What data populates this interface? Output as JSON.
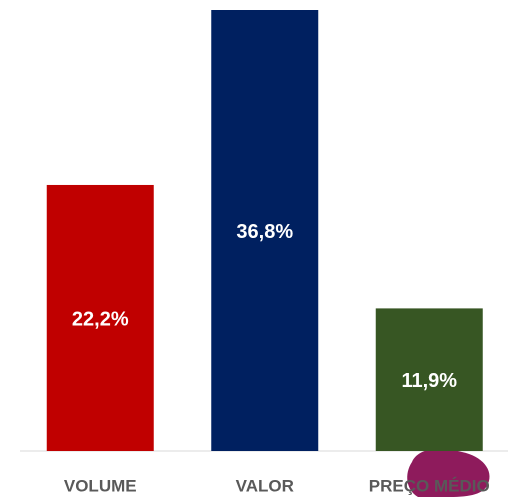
{
  "chart_data": {
    "type": "bar",
    "categories": [
      "VOLUME",
      "VALOR",
      "PREÇO MÉDIO"
    ],
    "values": [
      22.2,
      36.8,
      11.9
    ],
    "value_labels": [
      "22,2%",
      "36,8%",
      "11,9%"
    ],
    "colors": [
      "#c00000",
      "#002060",
      "#375623"
    ]
  }
}
